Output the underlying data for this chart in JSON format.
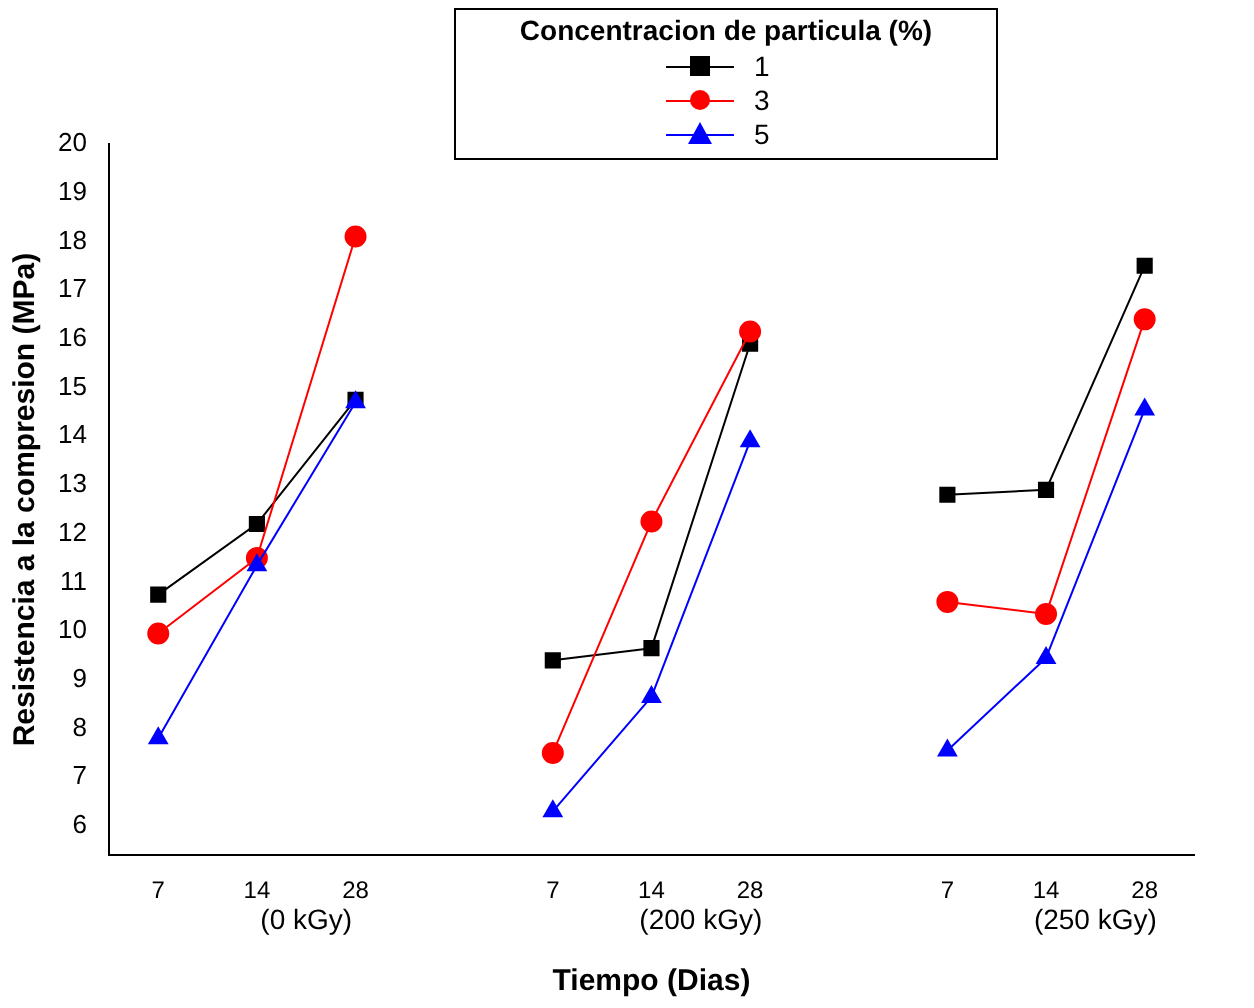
{
  "chart_data": {
    "type": "line",
    "xlabel": "Tiempo (Dias)",
    "ylabel": "Resistencia a la compresion (MPa)",
    "legend_title": "Concentracion de particula (%)",
    "legend": "top right",
    "grid": false,
    "categories": [
      "7",
      "14",
      "28",
      null,
      "7",
      "14",
      "28",
      null,
      "7",
      "14",
      "28"
    ],
    "ylim": [
      5.4,
      20
    ],
    "yticks": [
      6,
      7,
      8,
      9,
      10,
      11,
      12,
      13,
      14,
      15,
      16,
      17,
      18,
      19,
      20
    ],
    "annotations": [
      "(0 kGy)",
      "(200 kGy)",
      "(250 kGy)"
    ],
    "series": [
      {
        "name": "1",
        "color": "#000000",
        "marker": "square",
        "values": [
          10.75,
          12.2,
          14.75,
          null,
          9.4,
          9.65,
          15.9,
          null,
          12.8,
          12.9,
          17.5
        ]
      },
      {
        "name": "3",
        "color": "#ff0000",
        "marker": "circle",
        "values": [
          9.95,
          11.5,
          18.1,
          null,
          7.5,
          12.25,
          16.15,
          null,
          10.6,
          10.35,
          16.4
        ]
      },
      {
        "name": "5",
        "color": "#0000ff",
        "marker": "triangle",
        "values": [
          7.8,
          11.35,
          14.7,
          null,
          6.3,
          8.65,
          13.9,
          null,
          7.55,
          9.45,
          14.55
        ]
      }
    ]
  }
}
